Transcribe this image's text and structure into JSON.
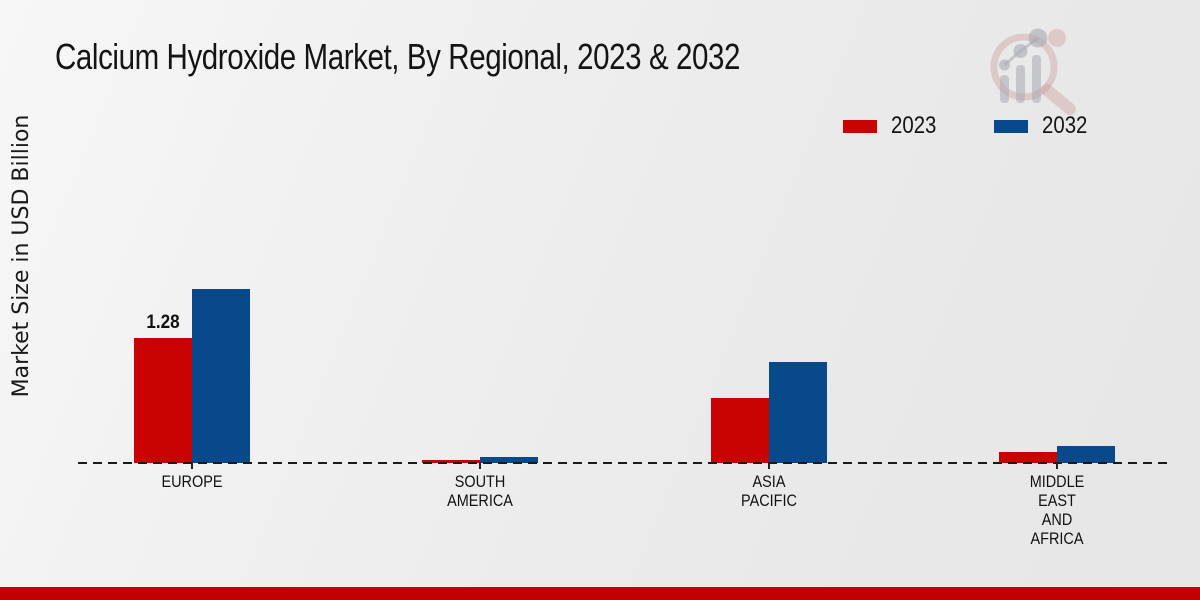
{
  "title": "Calcium Hydroxide Market, By Regional, 2023 & 2032",
  "y_axis_label": "Market Size in USD Billion",
  "legend": {
    "items": [
      {
        "label": "2023",
        "color": "#c90202"
      },
      {
        "label": "2032",
        "color": "#07498a"
      }
    ]
  },
  "colors": {
    "bar_2023": "#c90202",
    "bar_2032": "#07498a",
    "footer_bar": "#c20000",
    "axis": "#1a1a1a",
    "text": "#141414"
  },
  "logo": {
    "name": "magnifier-bar-chart-logo"
  },
  "chart_data": {
    "type": "bar",
    "title": "Calcium Hydroxide Market, By Regional, 2023 & 2032",
    "xlabel": "",
    "ylabel": "Market Size in USD Billion",
    "categories": [
      "EUROPE",
      "SOUTH AMERICA",
      "ASIA PACIFIC",
      "MIDDLE EAST AND AFRICA"
    ],
    "series": [
      {
        "name": "2023",
        "color": "#c90202",
        "values": [
          1.28,
          0.03,
          0.67,
          0.11
        ]
      },
      {
        "name": "2032",
        "color": "#07498a",
        "values": [
          1.78,
          0.06,
          1.03,
          0.17
        ]
      }
    ],
    "data_labels": [
      {
        "series": "2023",
        "category_index": 0,
        "text": "1.28"
      }
    ],
    "ylim": [
      0,
      2.0
    ],
    "grid": false,
    "legend_position": "top-right",
    "baseline_style": "dashed"
  }
}
